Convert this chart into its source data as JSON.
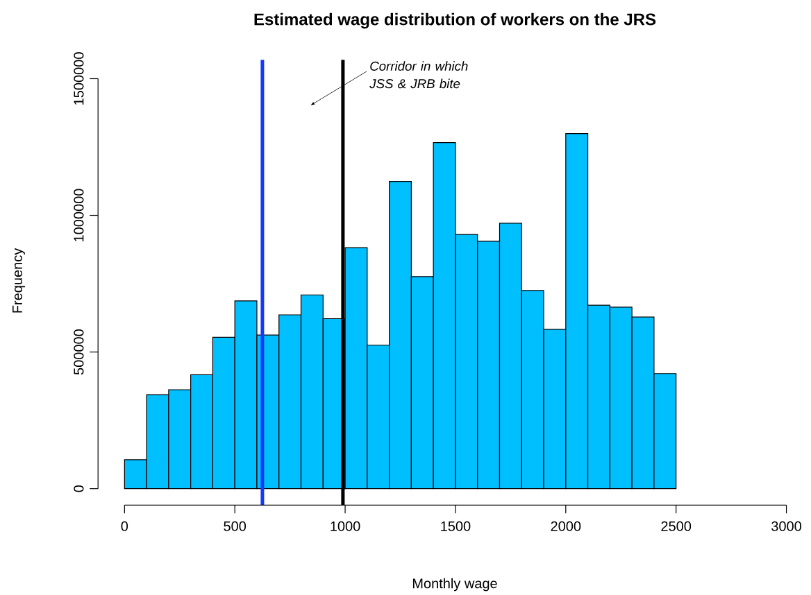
{
  "chart_data": {
    "type": "histogram",
    "title": "Estimated wage distribution of workers on the JRS",
    "xlabel": "Monthly wage",
    "ylabel": "Frequency",
    "bins": [
      0,
      100,
      200,
      300,
      400,
      500,
      600,
      700,
      800,
      900,
      1000,
      1100,
      1200,
      1300,
      1400,
      1500,
      1600,
      1700,
      1800,
      1900,
      2000,
      2100,
      2200,
      2300,
      2400,
      2500
    ],
    "values": [
      106000,
      344000,
      362000,
      417000,
      554000,
      687000,
      562000,
      636000,
      709000,
      622000,
      882000,
      525000,
      1124000,
      776000,
      1266000,
      930000,
      905000,
      971000,
      725000,
      583000,
      1299000,
      671000,
      664000,
      628000,
      421000
    ],
    "color": "#00bfff",
    "xlim": [
      0,
      3000
    ],
    "xticks": [
      0,
      500,
      1000,
      1500,
      2000,
      2500,
      3000
    ],
    "ylim": [
      0,
      1500000
    ],
    "yticks": [
      0,
      500000,
      1000000,
      1500000
    ],
    "ref_lines": [
      {
        "axis": "x",
        "value": 625,
        "color": "#1438ff"
      },
      {
        "axis": "x",
        "value": 990,
        "color": "#000000"
      }
    ],
    "annotations": [
      "Corridor in which JSS & JRB bite"
    ]
  }
}
